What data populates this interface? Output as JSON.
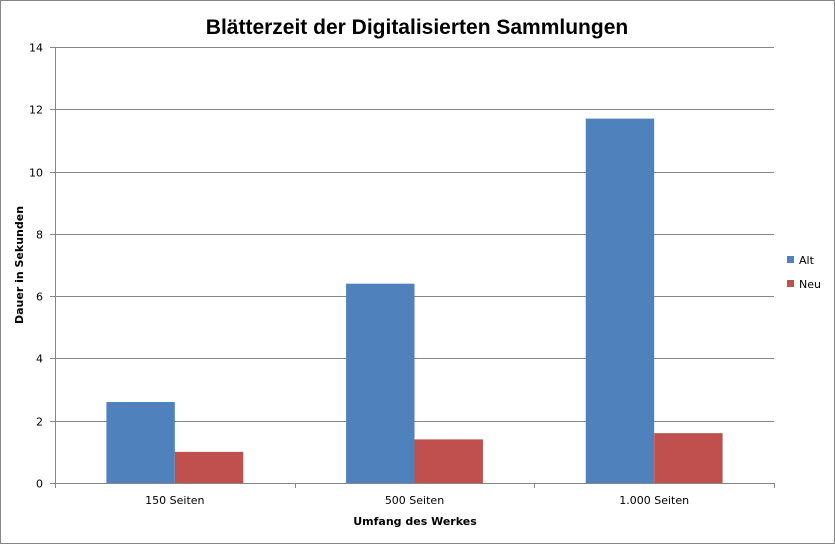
{
  "chart_data": {
    "type": "bar",
    "title": "Blätterzeit der Digitalisierten Sammlungen",
    "xlabel": "Umfang des Werkes",
    "ylabel": "Dauer in Sekunden",
    "categories": [
      "150 Seiten",
      "500 Seiten",
      "1.000 Seiten"
    ],
    "series": [
      {
        "name": "Alt",
        "values": [
          2.6,
          6.4,
          11.7
        ],
        "color": "#4f81bd"
      },
      {
        "name": "Neu",
        "values": [
          1.0,
          1.4,
          1.6
        ],
        "color": "#c0504d"
      }
    ],
    "ylim": [
      0,
      14
    ],
    "yticks": [
      0,
      2,
      4,
      6,
      8,
      10,
      12,
      14
    ],
    "grid": true,
    "legend_position": "right"
  }
}
